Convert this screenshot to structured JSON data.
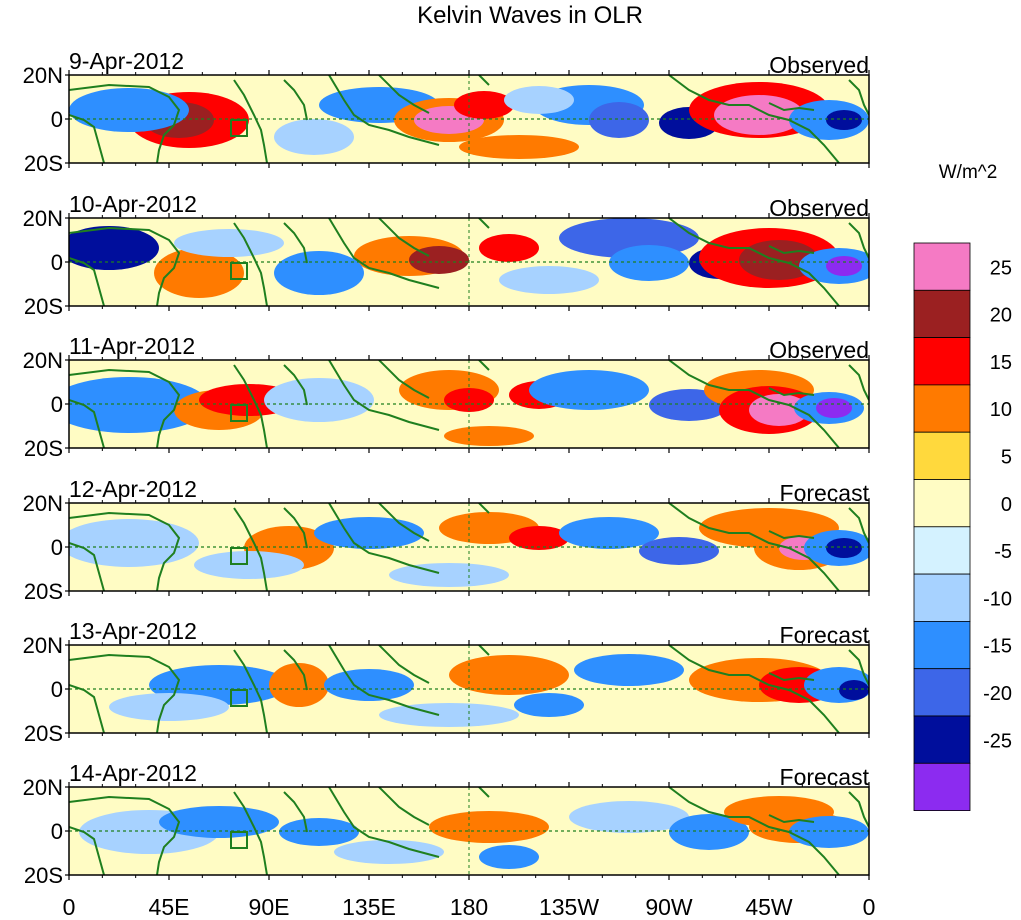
{
  "title": "Kelvin Waves in OLR",
  "colorbar": {
    "units_label": "W/m^2",
    "tick_labels": [
      "25",
      "20",
      "15",
      "10",
      "5",
      "0",
      "-5",
      "-10",
      "-15",
      "-20",
      "-25"
    ],
    "colors": [
      "#f57ac4",
      "#9b2021",
      "#ff0000",
      "#ff7a00",
      "#ffd93d",
      "#fffcc4",
      "#d4f2ff",
      "#a7d2ff",
      "#2e8fff",
      "#3d66e8",
      "#000e9c",
      "#8c2bf0"
    ]
  },
  "axes": {
    "y_tick_labels": [
      "20N",
      "0",
      "20S"
    ],
    "x_tick_labels": [
      "0",
      "45E",
      "90E",
      "135E",
      "180",
      "135W",
      "90W",
      "45W",
      "0"
    ]
  },
  "panels": [
    {
      "date": "9-Apr-2012",
      "status": "Observed"
    },
    {
      "date": "10-Apr-2012",
      "status": "Observed"
    },
    {
      "date": "11-Apr-2012",
      "status": "Observed"
    },
    {
      "date": "12-Apr-2012",
      "status": "Forecast"
    },
    {
      "date": "13-Apr-2012",
      "status": "Forecast"
    },
    {
      "date": "14-Apr-2012",
      "status": "Forecast"
    }
  ],
  "colors": {
    "coastline": "#1f7f1f",
    "equator_line": "#1f7f1f",
    "background_field": "#fffcc4"
  }
}
